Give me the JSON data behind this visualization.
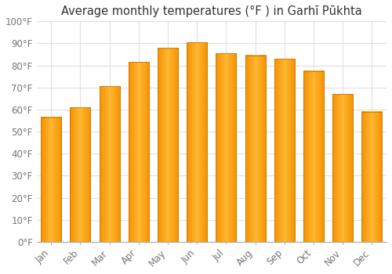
{
  "title": "Average monthly temperatures (°F ) in Garhī Pūkhta",
  "months": [
    "Jan",
    "Feb",
    "Mar",
    "Apr",
    "May",
    "Jun",
    "Jul",
    "Aug",
    "Sep",
    "Oct",
    "Nov",
    "Dec"
  ],
  "values": [
    56.5,
    61.0,
    70.5,
    81.5,
    88.0,
    90.5,
    85.5,
    84.5,
    83.0,
    77.5,
    67.0,
    59.0
  ],
  "bar_color_light": "#FFB733",
  "bar_color_dark": "#F59200",
  "bar_edge_color": "#C87800",
  "ylim": [
    0,
    100
  ],
  "yticks": [
    0,
    10,
    20,
    30,
    40,
    50,
    60,
    70,
    80,
    90,
    100
  ],
  "background_color": "#ffffff",
  "grid_color": "#e0e0e0",
  "title_fontsize": 10.5,
  "tick_fontsize": 8.5,
  "tick_color": "#777777"
}
